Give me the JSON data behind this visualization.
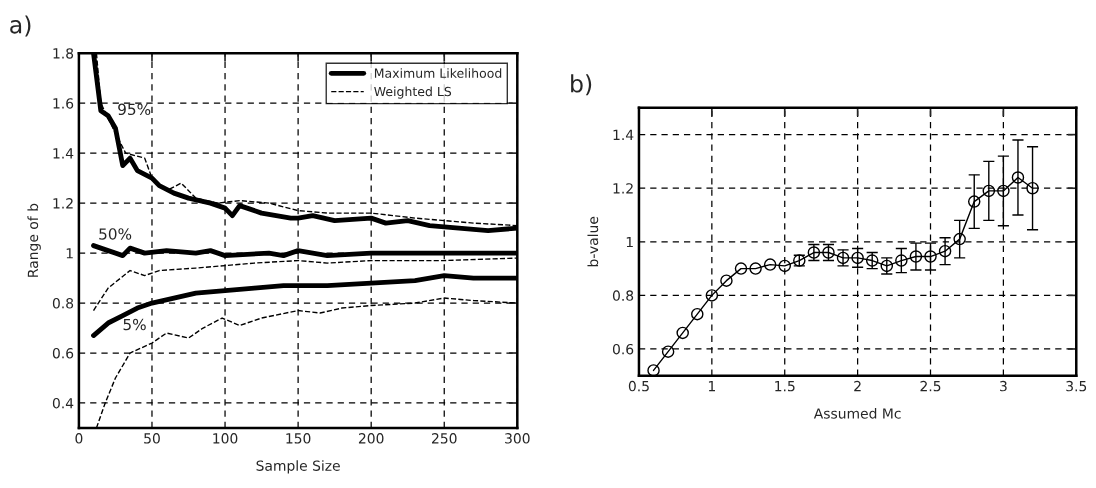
{
  "chart_data": [
    {
      "type": "line",
      "title": "a)",
      "xlabel": "Sample Size",
      "ylabel": "Range of b",
      "xlim": [
        0,
        300
      ],
      "xticks": [
        0,
        50,
        100,
        150,
        200,
        250,
        300
      ],
      "ylim": [
        0.3,
        1.8
      ],
      "yticks": [
        0.4,
        0.6,
        0.8,
        1,
        1.2,
        1.4,
        1.6,
        1.8
      ],
      "grid": true,
      "legend": "top right",
      "marker": "none",
      "series": [
        {
          "name": "Maximum Likelihood",
          "color": "#000000",
          "line_style": "solid",
          "x": [
            10,
            15,
            20,
            25,
            30,
            35,
            40,
            50,
            55,
            65,
            75,
            90,
            100,
            105,
            110,
            125,
            145,
            150,
            160,
            175,
            200,
            210,
            225,
            240,
            260,
            280,
            300
          ],
          "values": [
            1.8,
            1.57,
            1.55,
            1.5,
            1.35,
            1.38,
            1.33,
            1.3,
            1.27,
            1.24,
            1.22,
            1.2,
            1.18,
            1.15,
            1.19,
            1.16,
            1.14,
            1.14,
            1.15,
            1.13,
            1.14,
            1.12,
            1.13,
            1.11,
            1.1,
            1.09,
            1.1
          ]
        },
        {
          "name": "Weighted LS",
          "color": "#000000",
          "line_style": "dashed",
          "x": [
            12,
            15,
            25,
            32,
            45,
            50,
            60,
            70,
            80,
            95,
            110,
            130,
            150,
            170,
            200,
            230,
            250,
            270,
            300
          ],
          "values": [
            1.8,
            1.6,
            1.48,
            1.4,
            1.38,
            1.3,
            1.25,
            1.28,
            1.22,
            1.2,
            1.21,
            1.2,
            1.17,
            1.16,
            1.16,
            1.14,
            1.13,
            1.12,
            1.11
          ]
        },
        {
          "color": "#000000",
          "line_style": "solid",
          "x": [
            10,
            20,
            30,
            35,
            45,
            60,
            80,
            90,
            100,
            130,
            140,
            150,
            170,
            200,
            250,
            300
          ],
          "values": [
            1.03,
            1.01,
            0.99,
            1.02,
            1.0,
            1.01,
            1.0,
            1.01,
            0.99,
            1.0,
            0.99,
            1.01,
            0.99,
            1.0,
            1.0,
            1.0
          ]
        },
        {
          "color": "#000000",
          "line_style": "dashed",
          "x": [
            10,
            20,
            35,
            45,
            55,
            80,
            100,
            120,
            150,
            170,
            200,
            250,
            300
          ],
          "values": [
            0.77,
            0.86,
            0.93,
            0.91,
            0.93,
            0.94,
            0.95,
            0.96,
            0.97,
            0.96,
            0.97,
            0.97,
            0.98
          ]
        },
        {
          "color": "#000000",
          "line_style": "solid",
          "x": [
            10,
            20,
            30,
            40,
            50,
            65,
            80,
            100,
            120,
            140,
            170,
            200,
            230,
            250,
            270,
            300
          ],
          "values": [
            0.67,
            0.72,
            0.75,
            0.78,
            0.8,
            0.82,
            0.84,
            0.85,
            0.86,
            0.87,
            0.87,
            0.88,
            0.89,
            0.91,
            0.9,
            0.9
          ]
        },
        {
          "color": "#000000",
          "line_style": "dashed",
          "x": [
            12,
            18,
            25,
            35,
            50,
            60,
            75,
            85,
            98,
            110,
            125,
            150,
            165,
            180,
            200,
            230,
            250,
            270,
            300
          ],
          "values": [
            0.3,
            0.4,
            0.5,
            0.6,
            0.64,
            0.68,
            0.66,
            0.7,
            0.74,
            0.71,
            0.74,
            0.77,
            0.76,
            0.78,
            0.79,
            0.8,
            0.82,
            0.81,
            0.8
          ]
        }
      ],
      "annotations": [
        "95%",
        "50%",
        "5%"
      ]
    },
    {
      "type": "line",
      "title": "b)",
      "xlabel": "Assumed Mc",
      "ylabel": "b-value",
      "xlim": [
        0.5,
        3.5
      ],
      "xticks": [
        0.5,
        1,
        1.5,
        2,
        2.5,
        3,
        3.5
      ],
      "ylim": [
        0.5,
        1.5
      ],
      "yticks": [
        0.6,
        0.8,
        1,
        1.2,
        1.4
      ],
      "grid": true,
      "marker": "circle",
      "series": [
        {
          "color": "#000000",
          "line_style": "solid",
          "x": [
            0.6,
            0.7,
            0.8,
            0.9,
            1.0,
            1.1,
            1.2,
            1.3,
            1.4,
            1.5,
            1.6,
            1.7,
            1.8,
            1.9,
            2.0,
            2.1,
            2.2,
            2.3,
            2.4,
            2.5,
            2.6,
            2.7,
            2.8,
            2.9,
            3.0,
            3.1,
            3.2
          ],
          "values": [
            0.52,
            0.59,
            0.66,
            0.73,
            0.8,
            0.855,
            0.9,
            0.9,
            0.915,
            0.91,
            0.93,
            0.96,
            0.96,
            0.94,
            0.94,
            0.93,
            0.91,
            0.93,
            0.945,
            0.945,
            0.965,
            1.01,
            1.15,
            1.19,
            1.19,
            1.24,
            1.2
          ],
          "errors": [
            null,
            null,
            null,
            null,
            null,
            null,
            null,
            null,
            null,
            null,
            0.02,
            0.03,
            0.03,
            0.03,
            0.035,
            0.03,
            0.03,
            0.045,
            0.05,
            0.05,
            0.05,
            0.07,
            0.1,
            0.11,
            0.13,
            0.14,
            0.155
          ]
        }
      ]
    }
  ]
}
